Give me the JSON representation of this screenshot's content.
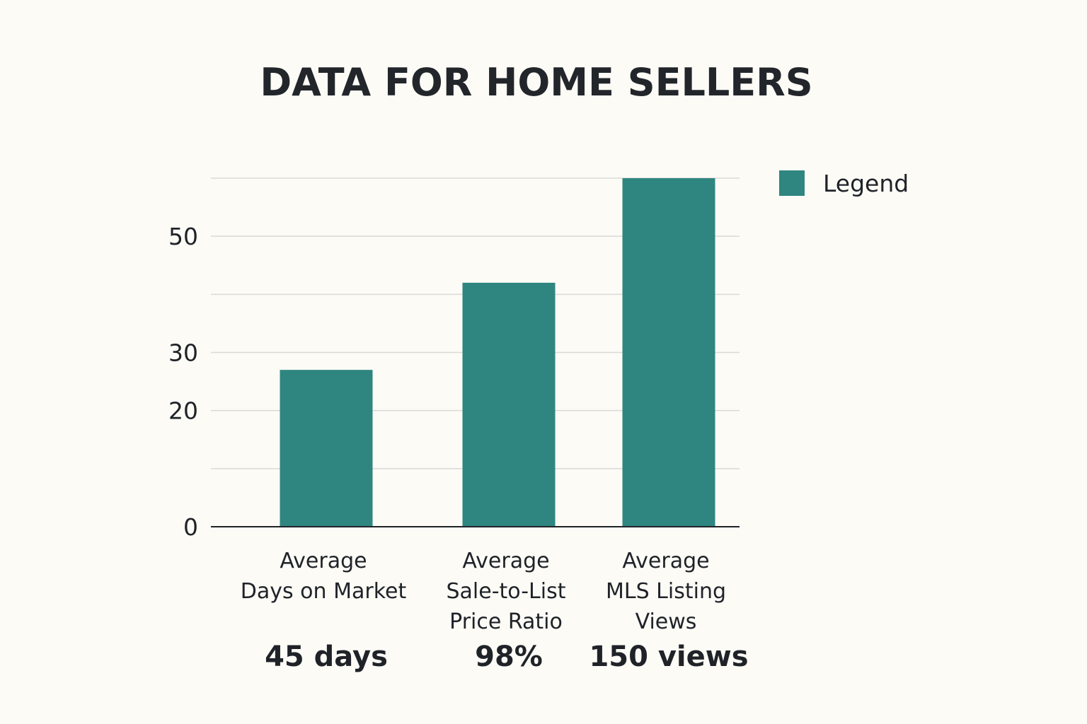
{
  "colors": {
    "bar": "#2f8680",
    "background": "#fcfbf6",
    "text": "#1f2328",
    "grid": "#d9d9d6"
  },
  "chart_data": {
    "type": "bar",
    "title": "DATA FOR HOME SELLERS",
    "categories": [
      [
        "Average",
        "Days on Market"
      ],
      [
        "Average",
        "Sale-to-List",
        "Price Ratio"
      ],
      [
        "Average",
        "MLS Listing",
        "Views"
      ]
    ],
    "value_labels": [
      "45 days",
      "98%",
      "150 views"
    ],
    "series": [
      {
        "name": "Legend",
        "values": [
          27,
          42,
          60
        ]
      }
    ],
    "y_ticks": [
      0,
      20,
      30,
      50
    ],
    "y_tick_labels": [
      "0",
      "20",
      "30",
      "50"
    ],
    "ylim": [
      0,
      60
    ],
    "grid": true,
    "legend_position": "top-right",
    "xlabel": "",
    "ylabel": ""
  }
}
